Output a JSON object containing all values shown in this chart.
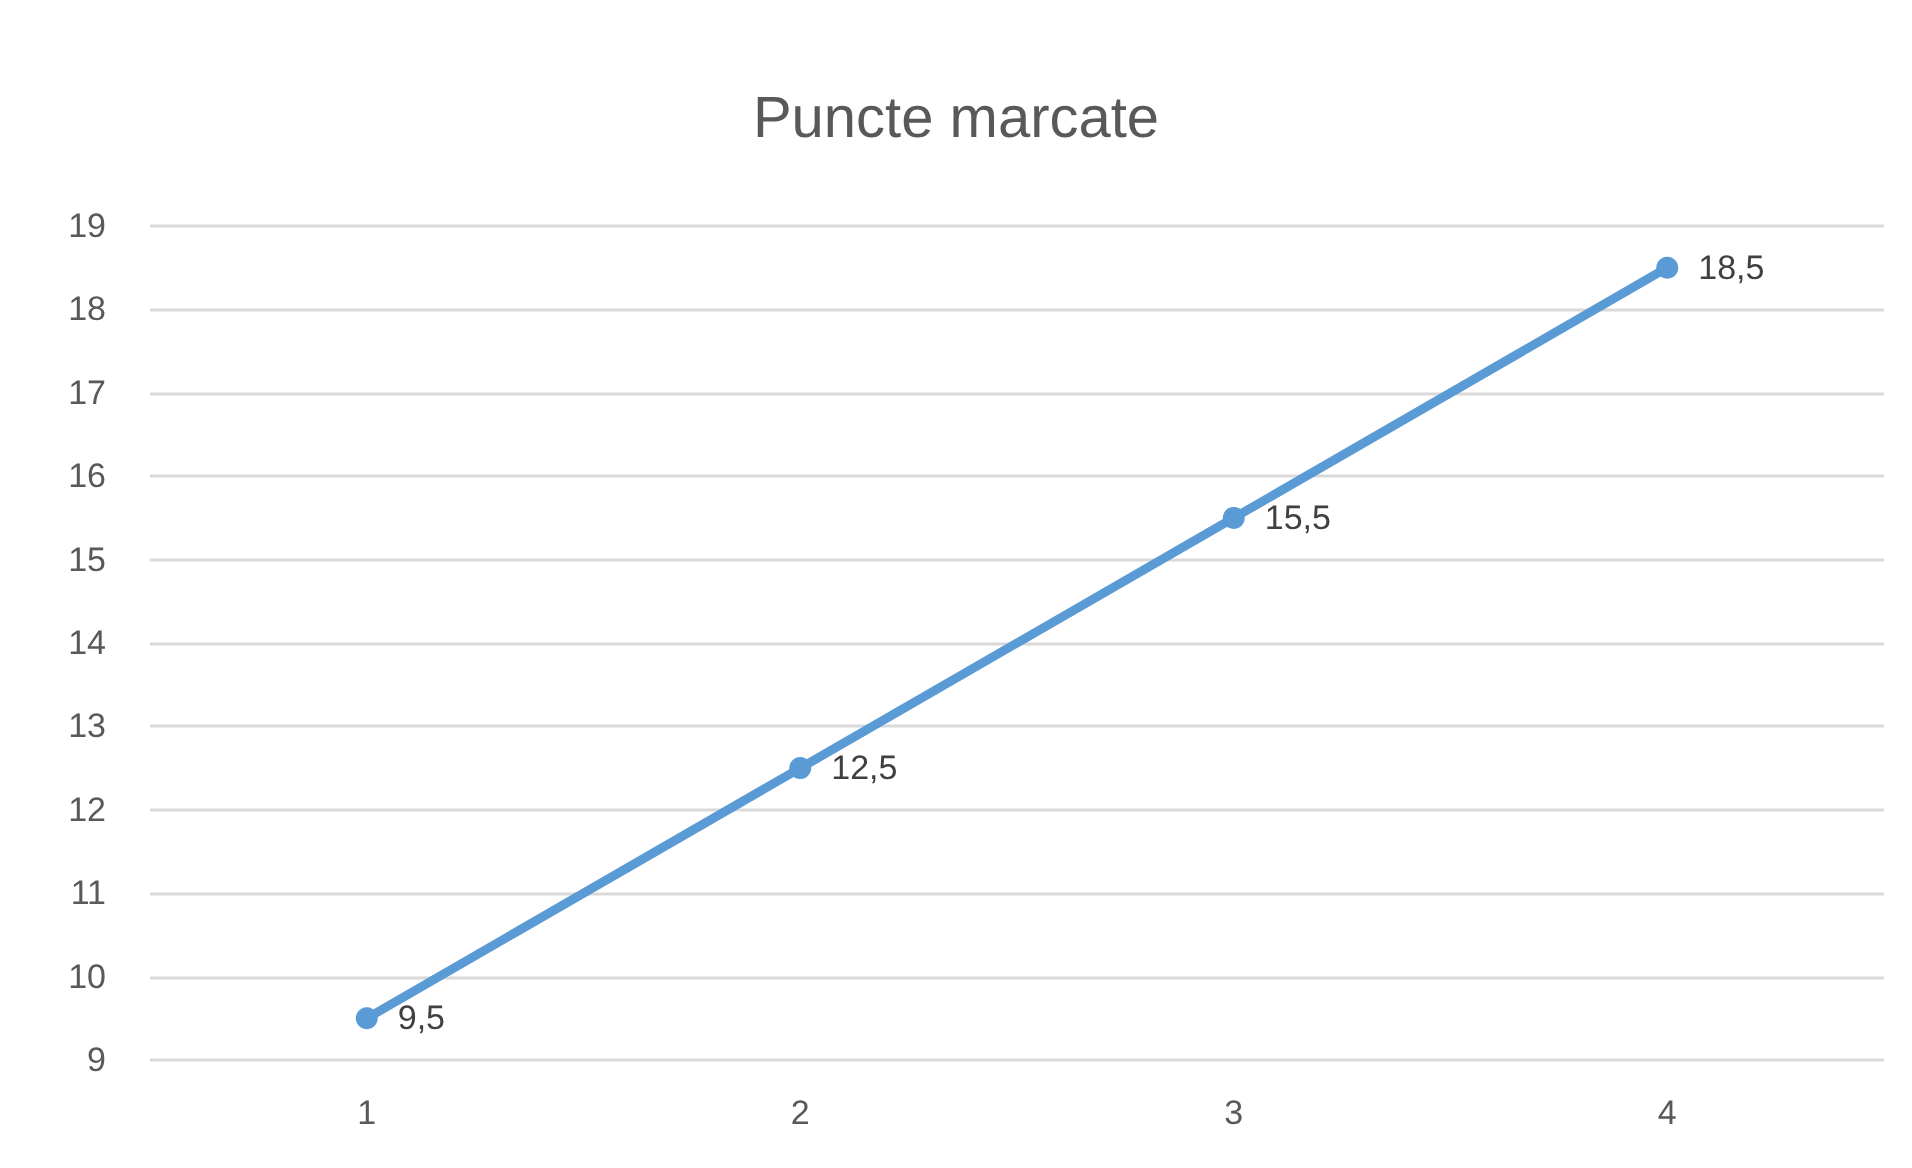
{
  "chart_data": {
    "type": "line",
    "title": "Puncte marcate",
    "categories": [
      "1",
      "2",
      "3",
      "4"
    ],
    "series": [
      {
        "color": "#5b9bd5",
        "values": [
          9.5,
          12.5,
          15.5,
          18.5
        ],
        "value_labels": [
          "9,5",
          "12,5",
          "15,5",
          "18,5"
        ]
      }
    ],
    "ylim": [
      9,
      19
    ],
    "yticks": [
      9,
      10,
      11,
      12,
      13,
      14,
      15,
      16,
      17,
      18,
      19
    ],
    "grid": "y",
    "marker": "circle",
    "line_style": "solid"
  }
}
